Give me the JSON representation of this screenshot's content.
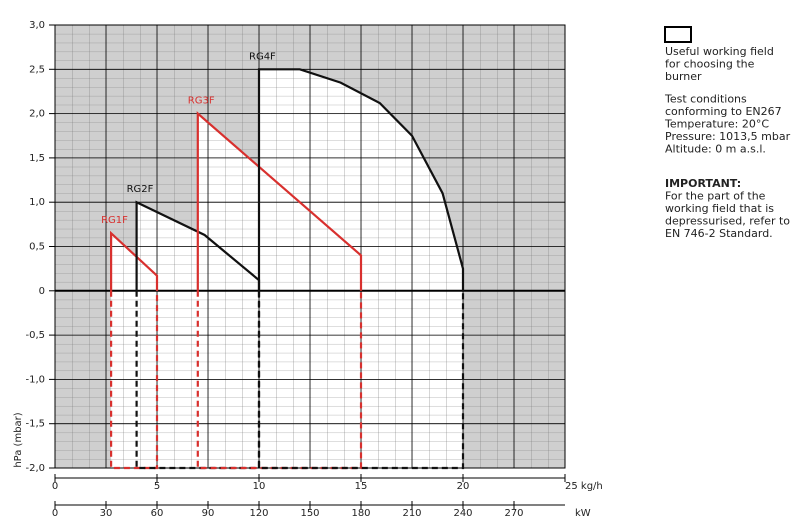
{
  "chart_data": {
    "type": "line",
    "ylabel": "hPa (mbar)",
    "xlabel": "kW",
    "xlim": [
      0,
      300
    ],
    "xticks": [
      0,
      30,
      60,
      90,
      120,
      150,
      180,
      210,
      240,
      270
    ],
    "x2lim": [
      0,
      25
    ],
    "x2ticks": [
      0,
      5,
      10,
      15,
      20,
      {
        "value": 25,
        "label": "25 kg/h"
      }
    ],
    "ylim": [
      -2,
      3
    ],
    "yticks": [
      {
        "value": -2,
        "label": "-2,0"
      },
      {
        "value": -1.5,
        "label": "-1,5"
      },
      {
        "value": -1,
        "label": "-1,0"
      },
      {
        "value": -0.5,
        "label": "-0,5"
      },
      0,
      {
        "value": 0.5,
        "label": "0,5"
      },
      {
        "value": 1,
        "label": "1,0"
      },
      {
        "value": 1.5,
        "label": "1,5"
      },
      {
        "value": 2,
        "label": "2,0"
      },
      {
        "value": 2.5,
        "label": "2,5"
      },
      {
        "value": 3,
        "label": "3,0"
      }
    ],
    "grid": true,
    "series": [
      {
        "name": "RG1F",
        "color": "#d8302e",
        "x": [
          33,
          33,
          60,
          60
        ],
        "values": [
          0,
          0.65,
          0.17,
          0
        ]
      },
      {
        "name": "RG2F",
        "color": "#111111",
        "x": [
          48,
          48,
          88,
          120,
          120
        ],
        "values": [
          0,
          1.0,
          0.63,
          0.12,
          0
        ]
      },
      {
        "name": "RG3F",
        "color": "#d8302e",
        "x": [
          84,
          84,
          180,
          180
        ],
        "values": [
          0,
          2.0,
          0.4,
          0
        ]
      },
      {
        "name": "RG4F",
        "color": "#111111",
        "x": [
          120,
          120,
          132,
          144,
          168,
          191,
          210,
          228,
          240,
          240
        ],
        "values": [
          0,
          2.5,
          2.5,
          2.5,
          2.35,
          2.12,
          1.75,
          1.1,
          0.25,
          0
        ]
      }
    ],
    "notes": [
      {
        "lines": [
          "Useful working field",
          "for choosing the",
          "burner"
        ]
      },
      {
        "lines": [
          "Test conditions",
          "conforming to EN267",
          "Temperature: 20°C",
          "Pressure: 1013,5 mbar",
          "Altitude: 0 m a.s.l."
        ]
      },
      {
        "lines": [
          "IMPORTANT:",
          "For the part of the",
          "working field that is",
          "depressurised, refer to",
          "EN 746-2 Standard."
        ]
      }
    ]
  }
}
